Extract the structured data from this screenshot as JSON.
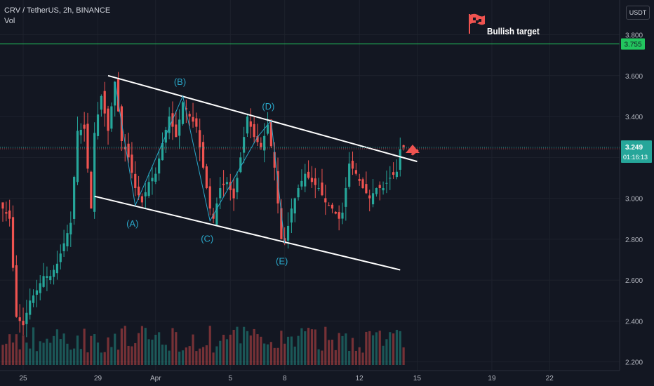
{
  "header": {
    "symbol_line": "CRV / TetherUS, 2h, BINANCE",
    "indicator": "Vol"
  },
  "currency": "USDT",
  "target": {
    "label": "Bullish target",
    "price_tag": "3.755",
    "color": "#22c55e"
  },
  "current_price": {
    "price_tag": "3.249",
    "countdown": "01:16:13",
    "color": "#26a69a"
  },
  "colors": {
    "up": "#26a69a",
    "down": "#ef5350",
    "wave": "#2aa7c9",
    "channel": "#ffffff",
    "arrow": "#ef5350",
    "flag": "#ef5350"
  },
  "chart_data": {
    "type": "candlestick",
    "ylim": [
      2.185,
      3.97
    ],
    "y_ticks": [
      2.2,
      2.4,
      2.6,
      2.8,
      3.0,
      3.2,
      3.4,
      3.6,
      3.8
    ],
    "y_tick_labels": [
      "2.200",
      "2.400",
      "2.600",
      "2.800",
      "3.000",
      "3.200",
      "3.400",
      "3.600",
      "3.800"
    ],
    "x_ticks": [
      {
        "label": "25",
        "i": 6
      },
      {
        "label": "29",
        "i": 28
      },
      {
        "label": "Apr",
        "i": 45
      },
      {
        "label": "5",
        "i": 67
      },
      {
        "label": "8",
        "i": 83
      },
      {
        "label": "12",
        "i": 105
      },
      {
        "label": "15",
        "i": 122
      },
      {
        "label": "19",
        "i": 144
      },
      {
        "label": "22",
        "i": 161
      }
    ],
    "anchors": [
      [
        0,
        2.95
      ],
      [
        2,
        2.9
      ],
      [
        4,
        2.42
      ],
      [
        6,
        2.38
      ],
      [
        8,
        2.5
      ],
      [
        10,
        2.55
      ],
      [
        12,
        2.62
      ],
      [
        14,
        2.62
      ],
      [
        16,
        2.68
      ],
      [
        18,
        2.78
      ],
      [
        20,
        2.88
      ],
      [
        22,
        3.33
      ],
      [
        24,
        3.34
      ],
      [
        26,
        2.95
      ],
      [
        27,
        3.32
      ],
      [
        29,
        3.5
      ],
      [
        31,
        3.33
      ],
      [
        33,
        3.57
      ],
      [
        35,
        3.28
      ],
      [
        37,
        3.2
      ],
      [
        39,
        3.05
      ],
      [
        41,
        2.98
      ],
      [
        43,
        3.08
      ],
      [
        45,
        3.12
      ],
      [
        47,
        3.27
      ],
      [
        49,
        3.4
      ],
      [
        51,
        3.3
      ],
      [
        53,
        3.47
      ],
      [
        55,
        3.4
      ],
      [
        57,
        3.35
      ],
      [
        59,
        3.15
      ],
      [
        61,
        2.95
      ],
      [
        62,
        2.9
      ],
      [
        64,
        3.05
      ],
      [
        66,
        3.08
      ],
      [
        68,
        3.0
      ],
      [
        70,
        3.2
      ],
      [
        72,
        3.4
      ],
      [
        74,
        3.3
      ],
      [
        76,
        3.25
      ],
      [
        78,
        3.36
      ],
      [
        80,
        3.15
      ],
      [
        82,
        2.8
      ],
      [
        83,
        2.78
      ],
      [
        85,
        2.95
      ],
      [
        87,
        3.05
      ],
      [
        89,
        3.12
      ],
      [
        91,
        3.08
      ],
      [
        93,
        3.05
      ],
      [
        95,
        2.98
      ],
      [
        97,
        2.95
      ],
      [
        99,
        2.9
      ],
      [
        100,
        2.93
      ],
      [
        102,
        3.17
      ],
      [
        104,
        3.12
      ],
      [
        106,
        3.05
      ],
      [
        108,
        3.0
      ],
      [
        110,
        3.05
      ],
      [
        112,
        3.05
      ],
      [
        114,
        3.1
      ],
      [
        116,
        3.13
      ],
      [
        117,
        3.24
      ],
      [
        118,
        3.25
      ]
    ],
    "volume": {
      "max": 1.0,
      "baseline": 0.1
    },
    "channel": {
      "upper": [
        [
          31,
          3.6
        ],
        [
          122,
          3.18
        ]
      ],
      "lower": [
        [
          27,
          3.01
        ],
        [
          117,
          2.65
        ]
      ]
    },
    "waves": [
      {
        "label": "(A)",
        "i": 39,
        "price": 2.965
      },
      {
        "label": "(B)",
        "i": 53,
        "price": 3.5
      },
      {
        "label": "(C)",
        "i": 61,
        "price": 2.89
      },
      {
        "label": "(D)",
        "i": 79,
        "price": 3.38
      },
      {
        "label": "(E)",
        "i": 83,
        "price": 2.78
      }
    ],
    "wave_path": [
      [
        33,
        3.57
      ],
      [
        39,
        2.965
      ],
      [
        53,
        3.5
      ],
      [
        61,
        2.89
      ],
      [
        75,
        3.3
      ],
      [
        79,
        3.38
      ],
      [
        83,
        2.78
      ]
    ],
    "target_price": 3.755,
    "current": 3.249
  }
}
